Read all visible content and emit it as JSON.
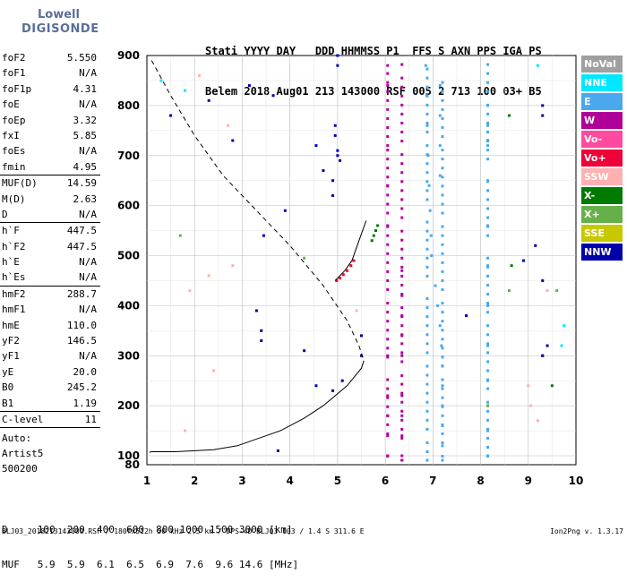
{
  "logo": {
    "line1": "Lowell",
    "line2": "DIGISONDE"
  },
  "header": {
    "line1": "Stati YYYY DAY   DDD HHMMSS P1  FFS S AXN PPS IGA PS",
    "line2": "Belem 2018 Aug01 213 143000 RSF 005 2 713 100 03+ B5"
  },
  "params": [
    {
      "k": "foF2",
      "v": "5.550"
    },
    {
      "k": "foF1",
      "v": "N/A"
    },
    {
      "k": "foF1p",
      "v": "4.31"
    },
    {
      "k": "foE",
      "v": "N/A"
    },
    {
      "k": "foEp",
      "v": "3.32"
    },
    {
      "k": "fxI",
      "v": "5.85"
    },
    {
      "k": "foEs",
      "v": "N/A"
    },
    {
      "k": "fmin",
      "v": "4.95",
      "sep": true
    },
    {
      "k": "MUF(D)",
      "v": "14.59"
    },
    {
      "k": "M(D)",
      "v": "2.63"
    },
    {
      "k": "D",
      "v": "N/A",
      "sep": true
    },
    {
      "k": "h`F",
      "v": "447.5"
    },
    {
      "k": "h`F2",
      "v": "447.5"
    },
    {
      "k": "h`E",
      "v": "N/A"
    },
    {
      "k": "h`Es",
      "v": "N/A",
      "sep": true
    },
    {
      "k": "hmF2",
      "v": "288.7"
    },
    {
      "k": "hmF1",
      "v": "N/A"
    },
    {
      "k": "hmE",
      "v": "110.0"
    },
    {
      "k": "yF2",
      "v": "146.5"
    },
    {
      "k": "yF1",
      "v": "N/A"
    },
    {
      "k": "yE",
      "v": "20.0"
    },
    {
      "k": "B0",
      "v": "245.2"
    },
    {
      "k": "B1",
      "v": "1.19",
      "sep": true
    },
    {
      "k": "C-level",
      "v": "11",
      "sep": true
    }
  ],
  "extra": {
    "l1": "Auto:",
    "l2": "Artist5",
    "l3": "500200"
  },
  "legend": [
    {
      "label": "NoVal",
      "color": "#a0a0a0"
    },
    {
      "label": "NNE",
      "color": "#00e8ff"
    },
    {
      "label": "E",
      "color": "#4aa8ee"
    },
    {
      "label": "W",
      "color": "#b0009a"
    },
    {
      "label": "Vo-",
      "color": "#ff4aa0"
    },
    {
      "label": "Vo+",
      "color": "#ee0038"
    },
    {
      "label": "SSW",
      "color": "#ffb0b0"
    },
    {
      "label": "X-",
      "color": "#007a00"
    },
    {
      "label": "X+",
      "color": "#66b04a"
    },
    {
      "label": "SSE",
      "color": "#c8c800"
    },
    {
      "label": "NNW",
      "color": "#0000aa"
    }
  ],
  "footer": {
    "dline": "D     100  200  400  600  800 1000 1500 3000 [km]",
    "mline": "MUF   5.9  5.9  6.1  6.5  6.9  7.6  9.6 14.6 [MHz]",
    "fline": "BLJ03_2018213143000.RSF / 180fx512h 50 kHz 2.5 km / DPS-4D BLJ03 103 / 1.4 S 311.6 E",
    "version": "Ion2Png v. 1.3.17"
  },
  "chart_data": {
    "type": "scatter",
    "xlim": [
      1,
      10
    ],
    "ylim": [
      80,
      900
    ],
    "x_ticks": [
      1,
      2,
      3,
      4,
      5,
      6,
      7,
      8,
      9,
      10
    ],
    "y_ticks": [
      80,
      100,
      200,
      300,
      400,
      500,
      600,
      700,
      800,
      900
    ],
    "grid": true,
    "series": [
      {
        "name": "E",
        "color": "#4aa8ee",
        "points": [
          [
            6.85,
            880
          ],
          [
            6.87,
            820
          ],
          [
            6.88,
            760
          ],
          [
            6.9,
            700
          ],
          [
            6.92,
            640
          ],
          [
            6.94,
            590
          ],
          [
            6.96,
            540
          ],
          [
            6.97,
            500
          ],
          [
            7.05,
            440
          ],
          [
            7.1,
            400
          ],
          [
            7.15,
            360
          ],
          [
            7.18,
            320
          ],
          [
            7.2,
            280
          ],
          [
            7.2,
            240
          ],
          [
            7.2,
            200
          ],
          [
            7.2,
            160
          ],
          [
            7.2,
            120
          ],
          [
            7.2,
            90
          ],
          [
            7.15,
            840
          ],
          [
            7.15,
            780
          ],
          [
            7.15,
            720
          ],
          [
            7.15,
            660
          ],
          [
            8.15,
            800
          ],
          [
            8.15,
            760
          ],
          [
            8.15,
            720
          ],
          [
            8.15,
            650
          ],
          [
            8.15,
            560
          ],
          [
            8.15,
            480
          ],
          [
            8.15,
            400
          ],
          [
            8.15,
            320
          ],
          [
            8.15,
            250
          ],
          [
            8.15,
            200
          ],
          [
            8.15,
            150
          ],
          [
            8.15,
            100
          ]
        ]
      },
      {
        "name": "W",
        "color": "#b0009a",
        "points": [
          [
            6.05,
            880
          ],
          [
            6.05,
            840
          ],
          [
            6.05,
            720
          ],
          [
            6.05,
            640
          ],
          [
            6.05,
            560
          ],
          [
            6.05,
            300
          ],
          [
            6.05,
            220
          ],
          [
            6.05,
            180
          ],
          [
            6.05,
            140
          ],
          [
            6.05,
            100
          ],
          [
            6.35,
            470
          ],
          [
            6.35,
            420
          ],
          [
            6.35,
            380
          ],
          [
            6.35,
            340
          ],
          [
            6.35,
            300
          ],
          [
            6.35,
            260
          ],
          [
            6.35,
            220
          ],
          [
            6.35,
            180
          ],
          [
            6.35,
            140
          ],
          [
            6.35,
            100
          ],
          [
            6.35,
            90
          ],
          [
            9.3,
            300
          ]
        ]
      },
      {
        "name": "Vo+",
        "color": "#ee0038",
        "points": [
          [
            4.98,
            450
          ],
          [
            5.05,
            455
          ],
          [
            5.12,
            462
          ],
          [
            5.2,
            470
          ],
          [
            5.28,
            480
          ],
          [
            5.34,
            490
          ]
        ]
      },
      {
        "name": "X-",
        "color": "#007a00",
        "points": [
          [
            5.72,
            530
          ],
          [
            5.76,
            540
          ],
          [
            5.8,
            550
          ],
          [
            5.84,
            560
          ],
          [
            8.15,
            730
          ],
          [
            8.6,
            780
          ],
          [
            8.65,
            480
          ],
          [
            9.5,
            240
          ]
        ]
      },
      {
        "name": "NNW",
        "color": "#0000aa",
        "points": [
          [
            1.5,
            780
          ],
          [
            2.3,
            810
          ],
          [
            3.15,
            840
          ],
          [
            3.65,
            820
          ],
          [
            3.9,
            590
          ],
          [
            3.3,
            390
          ],
          [
            3.4,
            350
          ],
          [
            3.4,
            330
          ],
          [
            2.8,
            730
          ],
          [
            3.45,
            540
          ],
          [
            4.55,
            720
          ],
          [
            4.7,
            670
          ],
          [
            4.9,
            650
          ],
          [
            4.9,
            620
          ],
          [
            4.95,
            760
          ],
          [
            4.95,
            740
          ],
          [
            5.0,
            710
          ],
          [
            5.0,
            700
          ],
          [
            5.05,
            690
          ],
          [
            5.0,
            880
          ],
          [
            5.0,
            900
          ],
          [
            5.1,
            250
          ],
          [
            4.9,
            230
          ],
          [
            5.5,
            340
          ],
          [
            5.5,
            300
          ],
          [
            4.55,
            240
          ],
          [
            4.3,
            310
          ],
          [
            3.75,
            110
          ],
          [
            7.7,
            380
          ],
          [
            8.9,
            490
          ],
          [
            9.3,
            800
          ],
          [
            9.3,
            780
          ],
          [
            9.15,
            520
          ],
          [
            9.3,
            450
          ],
          [
            9.3,
            300
          ],
          [
            9.4,
            320
          ]
        ]
      },
      {
        "name": "NNE",
        "color": "#00e8ff",
        "points": [
          [
            1.3,
            850
          ],
          [
            1.8,
            830
          ],
          [
            9.2,
            880
          ],
          [
            9.75,
            360
          ],
          [
            9.7,
            320
          ]
        ]
      },
      {
        "name": "SSW",
        "color": "#ffb0b0",
        "points": [
          [
            2.1,
            860
          ],
          [
            2.7,
            760
          ],
          [
            2.8,
            480
          ],
          [
            2.3,
            460
          ],
          [
            2.4,
            270
          ],
          [
            1.9,
            430
          ],
          [
            1.8,
            150
          ],
          [
            5.4,
            390
          ],
          [
            9.0,
            240
          ],
          [
            9.05,
            200
          ],
          [
            9.2,
            170
          ],
          [
            9.4,
            430
          ]
        ]
      },
      {
        "name": "X+",
        "color": "#66b04a",
        "points": [
          [
            4.3,
            495
          ],
          [
            8.15,
            200
          ],
          [
            8.6,
            430
          ],
          [
            9.6,
            430
          ],
          [
            1.7,
            540
          ]
        ]
      }
    ],
    "curves": [
      {
        "name": "true-height profile (dashed)",
        "style": "dashed",
        "points": [
          [
            1.1,
            890
          ],
          [
            1.5,
            820
          ],
          [
            2.0,
            740
          ],
          [
            2.6,
            660
          ],
          [
            3.3,
            590
          ],
          [
            4.0,
            520
          ],
          [
            4.7,
            440
          ],
          [
            5.2,
            370
          ],
          [
            5.45,
            320
          ],
          [
            5.55,
            290
          ]
        ]
      },
      {
        "name": "true-height profile (solid)",
        "style": "solid",
        "points": [
          [
            5.55,
            290
          ],
          [
            5.5,
            275
          ],
          [
            5.2,
            240
          ],
          [
            4.7,
            200
          ],
          [
            4.3,
            175
          ],
          [
            3.8,
            150
          ],
          [
            3.2,
            130
          ],
          [
            2.9,
            120
          ],
          [
            2.4,
            112
          ],
          [
            2.0,
            110
          ],
          [
            1.6,
            108
          ],
          [
            1.1,
            108
          ],
          [
            1.05,
            107
          ]
        ]
      },
      {
        "name": "leading edge (solid)",
        "style": "solid",
        "points": [
          [
            4.95,
            450
          ],
          [
            5.15,
            470
          ],
          [
            5.3,
            490
          ],
          [
            5.45,
            530
          ],
          [
            5.6,
            570
          ]
        ]
      }
    ]
  }
}
